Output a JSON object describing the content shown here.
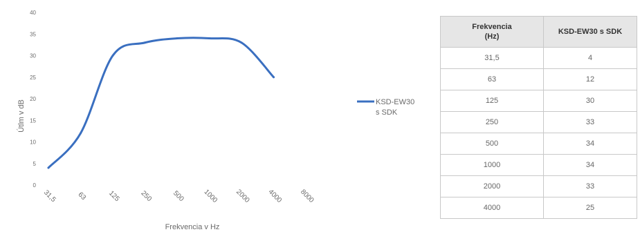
{
  "chart_data": {
    "type": "line",
    "x_categories": [
      "31,5",
      "63",
      "125",
      "250",
      "500",
      "1000",
      "2000",
      "4000",
      "8000"
    ],
    "series": [
      {
        "name": "KSD-EW30 s SDK",
        "legend_lines": [
          "KSD-EW30",
          "s SDK"
        ],
        "color": "#3a6fc0",
        "x": [
          "31,5",
          "63",
          "125",
          "250",
          "500",
          "1000",
          "2000",
          "4000"
        ],
        "values": [
          4,
          12,
          30,
          33,
          34,
          34,
          33,
          25
        ]
      }
    ],
    "y_ticks": [
      "0",
      "5",
      "10",
      "15",
      "20",
      "25",
      "30",
      "35",
      "40"
    ],
    "ylim": [
      0,
      40
    ],
    "xlabel": "Frekvencia v Hz",
    "ylabel": "Útlm v dB",
    "grid": false,
    "legend_position": "right"
  },
  "table": {
    "headers": [
      "Frekvencia (Hz)",
      "KSD-EW30 s SDK"
    ],
    "header_lines": [
      [
        "Frekvencia",
        "(Hz)"
      ],
      [
        "KSD-EW30 s SDK"
      ]
    ],
    "rows": [
      [
        "31,5",
        "4"
      ],
      [
        "63",
        "12"
      ],
      [
        "125",
        "30"
      ],
      [
        "250",
        "33"
      ],
      [
        "500",
        "34"
      ],
      [
        "1000",
        "34"
      ],
      [
        "2000",
        "33"
      ],
      [
        "4000",
        "25"
      ]
    ]
  }
}
